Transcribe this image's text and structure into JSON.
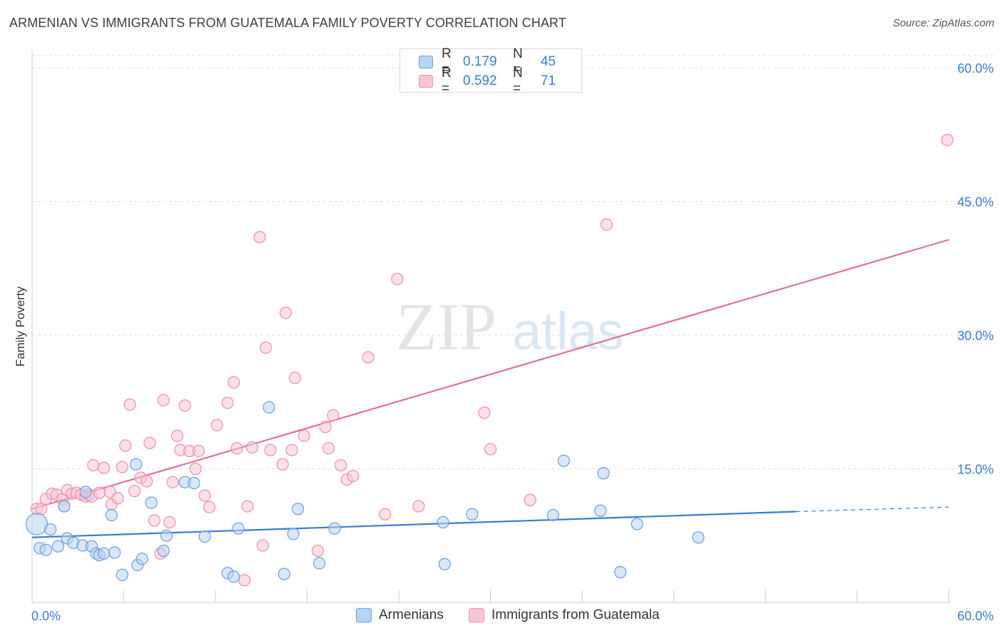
{
  "header": {
    "title": "ARMENIAN VS IMMIGRANTS FROM GUATEMALA FAMILY POVERTY CORRELATION CHART",
    "source": "Source: ZipAtlas.com"
  },
  "legend": {
    "rows": [
      {
        "r_label": "R =",
        "r_value": "0.179",
        "n_label": "N =",
        "n_value": "45"
      },
      {
        "r_label": "R =",
        "r_value": "0.592",
        "n_label": "N =",
        "n_value": "71"
      }
    ]
  },
  "watermark": {
    "zip": "ZIP",
    "atlas": "atlas"
  },
  "colors": {
    "blue_fill": "#b9d3f4",
    "blue_stroke": "#6a9fe0",
    "blue_line": "#3a7bd5",
    "pink_fill": "#f7c6d5",
    "pink_stroke": "#ec8fab",
    "pink_line": "#e0709a",
    "tick_label": "#3a7bd5",
    "grid": "#dddddd"
  },
  "chart_data": {
    "type": "scatter",
    "title": "ARMENIAN VS IMMIGRANTS FROM GUATEMALA FAMILY POVERTY CORRELATION CHART",
    "xlabel": "",
    "ylabel": "Family Poverty",
    "xlim": [
      0,
      60
    ],
    "ylim": [
      0,
      62
    ],
    "x_tick_labels": {
      "left": "0.0%",
      "right": "60.0%"
    },
    "y_ticks": [
      {
        "value": 15,
        "label": "15.0%"
      },
      {
        "value": 30,
        "label": "30.0%"
      },
      {
        "value": 45,
        "label": "45.0%"
      },
      {
        "value": 60,
        "label": "60.0%"
      }
    ],
    "grid": true,
    "legend_position": "top-center",
    "series": [
      {
        "name": "Armenians",
        "color": "#6a9fe0",
        "trend": {
          "x0": 0,
          "y0": 7.3,
          "x1": 50,
          "y1": 10.2,
          "dashed_to_x": 60,
          "dashed_to_y": 10.7
        },
        "points": [
          {
            "x": 0.3,
            "y": 8.8,
            "big": true
          },
          {
            "x": 0.5,
            "y": 6.1
          },
          {
            "x": 0.9,
            "y": 5.9
          },
          {
            "x": 1.2,
            "y": 8.2
          },
          {
            "x": 1.7,
            "y": 6.3
          },
          {
            "x": 2.1,
            "y": 10.8
          },
          {
            "x": 2.3,
            "y": 7.2
          },
          {
            "x": 2.7,
            "y": 6.7
          },
          {
            "x": 3.3,
            "y": 6.4
          },
          {
            "x": 3.5,
            "y": 12.4
          },
          {
            "x": 3.9,
            "y": 6.3
          },
          {
            "x": 4.2,
            "y": 5.5
          },
          {
            "x": 4.4,
            "y": 5.3
          },
          {
            "x": 4.7,
            "y": 5.5
          },
          {
            "x": 5.2,
            "y": 9.8
          },
          {
            "x": 5.4,
            "y": 5.6
          },
          {
            "x": 5.9,
            "y": 3.1
          },
          {
            "x": 6.8,
            "y": 15.5
          },
          {
            "x": 6.9,
            "y": 4.2
          },
          {
            "x": 7.2,
            "y": 4.9
          },
          {
            "x": 7.8,
            "y": 11.2
          },
          {
            "x": 8.6,
            "y": 5.8
          },
          {
            "x": 8.8,
            "y": 7.5
          },
          {
            "x": 10.0,
            "y": 13.5
          },
          {
            "x": 10.6,
            "y": 13.4
          },
          {
            "x": 11.3,
            "y": 7.4
          },
          {
            "x": 12.8,
            "y": 3.3
          },
          {
            "x": 13.2,
            "y": 2.9
          },
          {
            "x": 13.5,
            "y": 8.3
          },
          {
            "x": 15.5,
            "y": 21.9
          },
          {
            "x": 16.5,
            "y": 3.2
          },
          {
            "x": 17.1,
            "y": 7.7
          },
          {
            "x": 17.4,
            "y": 10.5
          },
          {
            "x": 18.8,
            "y": 4.4
          },
          {
            "x": 19.8,
            "y": 8.3
          },
          {
            "x": 26.9,
            "y": 9.0
          },
          {
            "x": 27.0,
            "y": 4.3
          },
          {
            "x": 28.8,
            "y": 9.9
          },
          {
            "x": 34.1,
            "y": 9.8
          },
          {
            "x": 34.8,
            "y": 15.9
          },
          {
            "x": 37.2,
            "y": 10.3
          },
          {
            "x": 37.4,
            "y": 14.5
          },
          {
            "x": 38.5,
            "y": 3.4
          },
          {
            "x": 39.6,
            "y": 8.8
          },
          {
            "x": 43.6,
            "y": 7.3
          }
        ]
      },
      {
        "name": "Immigrants from Guatemala",
        "color": "#ec8fab",
        "trend": {
          "x0": 0,
          "y0": 10.5,
          "x1": 60,
          "y1": 40.7
        },
        "points": [
          {
            "x": 0.3,
            "y": 10.5
          },
          {
            "x": 0.6,
            "y": 10.5
          },
          {
            "x": 0.9,
            "y": 11.6
          },
          {
            "x": 1.3,
            "y": 12.2
          },
          {
            "x": 1.6,
            "y": 12.1
          },
          {
            "x": 2.0,
            "y": 11.6
          },
          {
            "x": 2.1,
            "y": 10.8
          },
          {
            "x": 2.3,
            "y": 12.6
          },
          {
            "x": 2.6,
            "y": 12.2
          },
          {
            "x": 2.9,
            "y": 12.3
          },
          {
            "x": 3.2,
            "y": 12.1
          },
          {
            "x": 3.5,
            "y": 11.9
          },
          {
            "x": 3.7,
            "y": 12.1
          },
          {
            "x": 3.9,
            "y": 11.9
          },
          {
            "x": 4.0,
            "y": 15.4
          },
          {
            "x": 4.4,
            "y": 12.3
          },
          {
            "x": 4.7,
            "y": 15.1
          },
          {
            "x": 5.1,
            "y": 12.4
          },
          {
            "x": 5.2,
            "y": 11.0
          },
          {
            "x": 5.6,
            "y": 11.7
          },
          {
            "x": 5.9,
            "y": 15.2
          },
          {
            "x": 6.1,
            "y": 17.6
          },
          {
            "x": 6.4,
            "y": 22.2
          },
          {
            "x": 6.7,
            "y": 12.5
          },
          {
            "x": 7.1,
            "y": 14.0
          },
          {
            "x": 7.5,
            "y": 13.6
          },
          {
            "x": 7.7,
            "y": 17.9
          },
          {
            "x": 8.0,
            "y": 9.2
          },
          {
            "x": 8.4,
            "y": 5.5
          },
          {
            "x": 8.6,
            "y": 22.7
          },
          {
            "x": 9.0,
            "y": 9.0
          },
          {
            "x": 9.2,
            "y": 13.5
          },
          {
            "x": 9.5,
            "y": 18.7
          },
          {
            "x": 9.7,
            "y": 17.1
          },
          {
            "x": 10.0,
            "y": 22.1
          },
          {
            "x": 10.3,
            "y": 17.0
          },
          {
            "x": 10.7,
            "y": 15.0
          },
          {
            "x": 10.9,
            "y": 17.0
          },
          {
            "x": 11.3,
            "y": 12.0
          },
          {
            "x": 11.6,
            "y": 10.7
          },
          {
            "x": 12.1,
            "y": 19.9
          },
          {
            "x": 12.8,
            "y": 22.4
          },
          {
            "x": 13.2,
            "y": 24.7
          },
          {
            "x": 13.4,
            "y": 17.3
          },
          {
            "x": 13.9,
            "y": 2.5
          },
          {
            "x": 14.1,
            "y": 10.8
          },
          {
            "x": 14.4,
            "y": 17.4
          },
          {
            "x": 14.9,
            "y": 41.0
          },
          {
            "x": 15.1,
            "y": 6.4
          },
          {
            "x": 15.3,
            "y": 28.6
          },
          {
            "x": 15.6,
            "y": 17.1
          },
          {
            "x": 16.4,
            "y": 15.5
          },
          {
            "x": 16.6,
            "y": 32.5
          },
          {
            "x": 17.0,
            "y": 17.1
          },
          {
            "x": 17.2,
            "y": 25.2
          },
          {
            "x": 17.8,
            "y": 18.7
          },
          {
            "x": 18.7,
            "y": 5.8
          },
          {
            "x": 19.2,
            "y": 19.7
          },
          {
            "x": 19.4,
            "y": 17.3
          },
          {
            "x": 19.7,
            "y": 21.0
          },
          {
            "x": 20.2,
            "y": 15.4
          },
          {
            "x": 20.6,
            "y": 13.8
          },
          {
            "x": 21.0,
            "y": 14.2
          },
          {
            "x": 22.0,
            "y": 27.5
          },
          {
            "x": 23.1,
            "y": 9.9
          },
          {
            "x": 23.9,
            "y": 36.3
          },
          {
            "x": 25.3,
            "y": 10.8
          },
          {
            "x": 29.6,
            "y": 21.3
          },
          {
            "x": 30.0,
            "y": 17.2
          },
          {
            "x": 32.6,
            "y": 11.5
          },
          {
            "x": 37.6,
            "y": 42.4
          },
          {
            "x": 59.9,
            "y": 51.9
          }
        ]
      }
    ]
  },
  "bottom_legend": [
    "Armenians",
    "Immigrants from Guatemala"
  ]
}
